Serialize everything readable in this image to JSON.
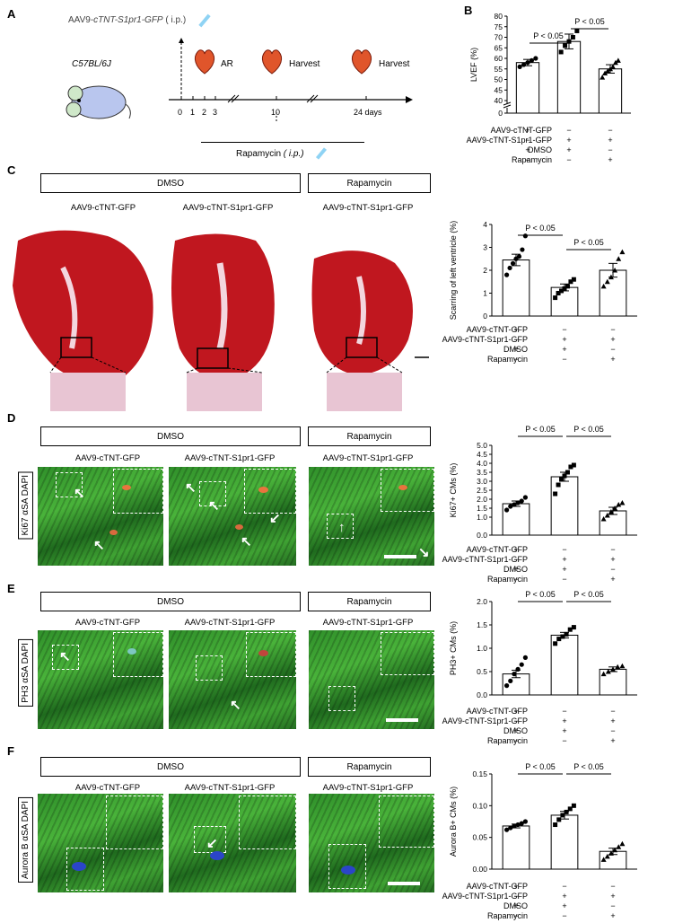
{
  "panel_letters": [
    "A",
    "B",
    "C",
    "D",
    "E",
    "F"
  ],
  "scheme": {
    "injection_label": "AAV9-",
    "injection_italic": "cTNT-S1pr1-GFP",
    "injection_route": " ( i.p.)",
    "strain": "C57BL/6J",
    "days": [
      "0",
      "1",
      "2",
      "3",
      "10",
      "24 days"
    ],
    "event_ar": "AR",
    "event_harvest1": "Harvest",
    "event_harvest2": "Harvest",
    "rapamycin": "Rapamycin",
    "rapamycin_route": " ( i.p.)"
  },
  "conditions": {
    "row1": "AAV9-cTNT-GFP",
    "row2": "AAV9-cTNT-S1pr1-GFP",
    "row3": "DMSO",
    "row4": "Rapamycin",
    "signs": [
      [
        "+",
        "−",
        "−"
      ],
      [
        "−",
        "+",
        "+"
      ],
      [
        "+",
        "+",
        "−"
      ],
      [
        "−",
        "−",
        "+"
      ]
    ]
  },
  "headers": {
    "dmso": "DMSO",
    "rapamycin": "Rapamycin"
  },
  "captions": [
    "AAV9-cTNT-GFP",
    "AAV9-cTNT-S1pr1-GFP",
    "AAV9-cTNT-S1pr1-GFP"
  ],
  "stain_labels": {
    "D": "Ki67 αSA DAPI",
    "E": "PH3 αSA DAPI",
    "F": "Aurora B αSA DAPI"
  },
  "pvalue": "P < 0.05",
  "chart_data": [
    {
      "id": "B",
      "type": "bar",
      "ylabel": "LVEF (%)",
      "yticks": [
        0,
        40,
        45,
        50,
        55,
        60,
        65,
        70,
        75,
        80
      ],
      "ylim": [
        40,
        80
      ],
      "axis_break": true,
      "values": [
        58,
        68,
        55
      ],
      "errors": [
        1.5,
        3.5,
        2
      ],
      "points": [
        [
          56,
          57,
          58,
          59,
          60
        ],
        [
          63,
          66,
          68,
          70,
          73
        ],
        [
          51,
          53,
          54,
          55,
          56,
          58,
          59
        ]
      ],
      "comparisons": [
        [
          "1",
          "2",
          "P < 0.05"
        ],
        [
          "2",
          "3",
          "P < 0.05"
        ]
      ]
    },
    {
      "id": "C",
      "type": "bar",
      "ylabel": "Scarring of left ventricle (%)",
      "yticks": [
        0,
        1,
        2,
        3,
        4
      ],
      "ylim": [
        0,
        4
      ],
      "values": [
        2.45,
        1.25,
        2.0
      ],
      "errors": [
        0.25,
        0.15,
        0.3
      ],
      "points": [
        [
          1.8,
          2.1,
          2.3,
          2.5,
          2.6,
          2.9,
          3.5
        ],
        [
          0.8,
          1.0,
          1.1,
          1.2,
          1.3,
          1.5,
          1.6
        ],
        [
          1.3,
          1.5,
          1.7,
          2.0,
          2.5,
          2.8
        ]
      ],
      "comparisons": [
        [
          "1",
          "2",
          "P < 0.05"
        ],
        [
          "2",
          "3",
          "P < 0.05"
        ]
      ]
    },
    {
      "id": "D",
      "type": "bar",
      "ylabel": "Ki67+ CMs (%)",
      "yticks": [
        0.0,
        1.0,
        1.5,
        2.0,
        2.5,
        3.0,
        3.5,
        4.0,
        4.5,
        5.0
      ],
      "ylim": [
        0,
        5
      ],
      "values": [
        1.75,
        3.25,
        1.35
      ],
      "errors": [
        0.15,
        0.25,
        0.2
      ],
      "points": [
        [
          1.4,
          1.6,
          1.7,
          1.8,
          1.9,
          2.1
        ],
        [
          2.3,
          2.8,
          3.1,
          3.3,
          3.5,
          3.8,
          3.9
        ],
        [
          0.9,
          1.1,
          1.3,
          1.5,
          1.7,
          1.8
        ]
      ],
      "comparisons": [
        [
          "1",
          "2",
          "P < 0.05"
        ],
        [
          "2",
          "3",
          "P < 0.05"
        ]
      ]
    },
    {
      "id": "E",
      "type": "bar",
      "ylabel": "PH3+ CMs (%)",
      "yticks": [
        0.0,
        0.5,
        1.0,
        1.5,
        2.0
      ],
      "ylim": [
        0,
        2
      ],
      "values": [
        0.45,
        1.28,
        0.55
      ],
      "errors": [
        0.08,
        0.06,
        0.05
      ],
      "points": [
        [
          0.2,
          0.3,
          0.45,
          0.55,
          0.65,
          0.8
        ],
        [
          1.1,
          1.2,
          1.25,
          1.3,
          1.4,
          1.45
        ],
        [
          0.45,
          0.5,
          0.55,
          0.6,
          0.62
        ]
      ],
      "comparisons": [
        [
          "1",
          "2",
          "P < 0.05"
        ],
        [
          "2",
          "3",
          "P < 0.05"
        ]
      ]
    },
    {
      "id": "F",
      "type": "bar",
      "ylabel": "Aurora B+ CMs (%)",
      "yticks": [
        0.0,
        0.05,
        0.1,
        0.15
      ],
      "ylim": [
        0,
        0.15
      ],
      "values": [
        0.068,
        0.085,
        0.028
      ],
      "errors": [
        0.003,
        0.006,
        0.005
      ],
      "points": [
        [
          0.062,
          0.065,
          0.068,
          0.07,
          0.072,
          0.075
        ],
        [
          0.07,
          0.078,
          0.085,
          0.09,
          0.095,
          0.1
        ],
        [
          0.015,
          0.02,
          0.025,
          0.03,
          0.035,
          0.04
        ]
      ],
      "comparisons": [
        [
          "1",
          "2",
          "P < 0.05"
        ],
        [
          "2",
          "3",
          "P < 0.05"
        ]
      ]
    }
  ]
}
